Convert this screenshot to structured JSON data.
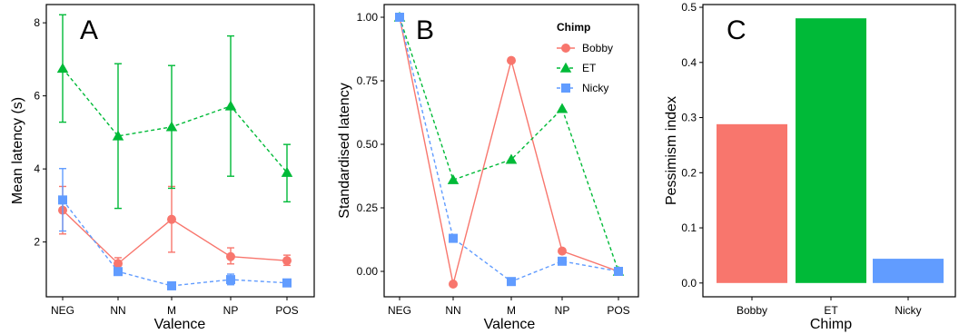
{
  "colors": {
    "Bobby": "#F8766D",
    "ET": "#00BA38",
    "Nicky": "#619CFF"
  },
  "chart_data": [
    {
      "type": "line",
      "panel_label": "A",
      "categories": [
        "NEG",
        "NN",
        "M",
        "NP",
        "POS"
      ],
      "xlabel": "Valence",
      "ylabel": "Mean latency (s)",
      "ylim": [
        0.5,
        8.5
      ],
      "yticks": [
        2,
        4,
        6,
        8
      ],
      "grid": false,
      "error_bars": true,
      "series": [
        {
          "name": "Bobby",
          "marker": "circle",
          "dash": "solid",
          "values": [
            2.87,
            1.41,
            2.62,
            1.6,
            1.49
          ],
          "lower": [
            2.22,
            1.25,
            1.72,
            1.4,
            1.36
          ],
          "upper": [
            3.52,
            1.57,
            3.52,
            1.84,
            1.64
          ]
        },
        {
          "name": "ET",
          "marker": "triangle",
          "dash": "dashed",
          "values": [
            6.75,
            4.9,
            5.15,
            5.72,
            3.9
          ],
          "lower": [
            5.28,
            2.92,
            3.47,
            3.8,
            3.1
          ],
          "upper": [
            8.22,
            6.88,
            6.83,
            7.64,
            4.67
          ]
        },
        {
          "name": "Nicky",
          "marker": "square",
          "dash": "dashed",
          "values": [
            3.15,
            1.19,
            0.8,
            0.97,
            0.88
          ],
          "lower": [
            2.3,
            1.19,
            0.8,
            0.83,
            0.88
          ],
          "upper": [
            4.01,
            1.19,
            0.8,
            1.12,
            0.88
          ]
        }
      ]
    },
    {
      "type": "line",
      "panel_label": "B",
      "categories": [
        "NEG",
        "NN",
        "M",
        "NP",
        "POS"
      ],
      "xlabel": "Valence",
      "ylabel": "Standardised latency",
      "ylim": [
        -0.1,
        1.05
      ],
      "yticks": [
        0.0,
        0.25,
        0.5,
        0.75,
        1.0
      ],
      "yticklabels": [
        "0.00",
        "0.25",
        "0.50",
        "0.75",
        "1.00"
      ],
      "grid": false,
      "legend": {
        "title": "Chimp",
        "position": "top-right"
      },
      "series": [
        {
          "name": "Bobby",
          "marker": "circle",
          "dash": "solid",
          "values": [
            1.0,
            -0.05,
            0.83,
            0.08,
            0.0
          ]
        },
        {
          "name": "ET",
          "marker": "triangle",
          "dash": "dashed",
          "values": [
            1.0,
            0.36,
            0.44,
            0.64,
            0.0
          ]
        },
        {
          "name": "Nicky",
          "marker": "square",
          "dash": "dashed",
          "values": [
            1.0,
            0.13,
            -0.04,
            0.04,
            0.0
          ]
        }
      ]
    },
    {
      "type": "bar",
      "panel_label": "C",
      "categories": [
        "Bobby",
        "ET",
        "Nicky"
      ],
      "values": [
        0.288,
        0.48,
        0.044
      ],
      "xlabel": "Chimp",
      "ylabel": "Pessimism index",
      "ylim": [
        -0.025,
        0.505
      ],
      "yticks": [
        0.0,
        0.1,
        0.2,
        0.3,
        0.4,
        0.5
      ],
      "yticklabels": [
        "0.0",
        "0.1",
        "0.2",
        "0.3",
        "0.4",
        "0.5"
      ],
      "grid": false
    }
  ]
}
